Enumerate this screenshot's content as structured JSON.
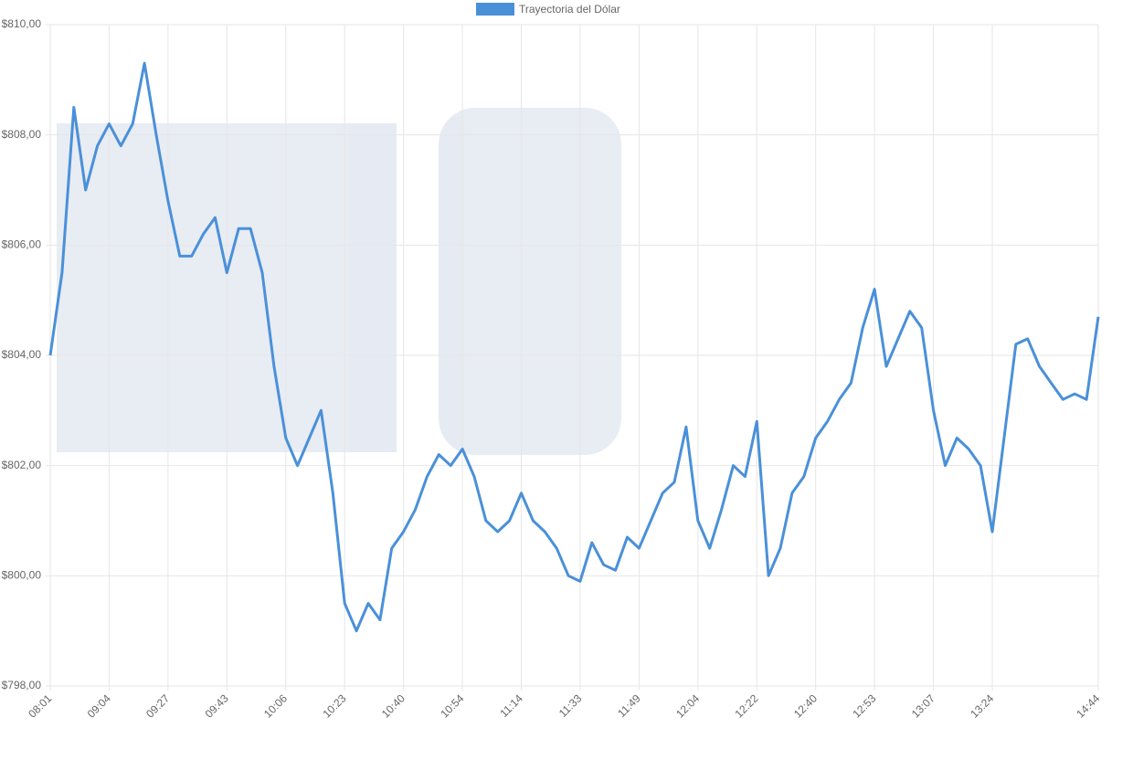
{
  "chart_data": {
    "type": "line",
    "categories": [
      "08:01",
      null,
      null,
      null,
      null,
      "09:04",
      null,
      null,
      null,
      null,
      "09:27",
      null,
      null,
      null,
      null,
      "09:43",
      null,
      null,
      null,
      null,
      "10:06",
      null,
      null,
      null,
      null,
      "10:23",
      null,
      null,
      null,
      null,
      "10:40",
      null,
      null,
      null,
      null,
      "10:54",
      null,
      null,
      null,
      null,
      "11:14",
      null,
      null,
      null,
      null,
      "11:33",
      null,
      null,
      null,
      null,
      "11:49",
      null,
      null,
      null,
      null,
      "12:04",
      null,
      null,
      null,
      null,
      "12:22",
      null,
      null,
      null,
      null,
      "12:40",
      null,
      null,
      null,
      null,
      "12:53",
      null,
      null,
      null,
      null,
      "13:07",
      null,
      null,
      null,
      null,
      "13:24",
      null,
      null,
      null,
      null,
      null,
      null,
      null,
      null,
      "14:44"
    ],
    "series": [
      {
        "name": "Trayectoria del Dólar",
        "color": "#4a90d9",
        "values": [
          804.0,
          805.5,
          808.5,
          807.0,
          807.8,
          808.2,
          807.8,
          808.2,
          809.3,
          808.0,
          806.8,
          805.8,
          805.8,
          806.2,
          806.5,
          805.5,
          806.3,
          806.3,
          805.5,
          803.8,
          802.5,
          802.0,
          802.5,
          803.0,
          801.5,
          799.5,
          799.0,
          799.5,
          799.2,
          800.5,
          800.8,
          801.2,
          801.8,
          802.2,
          802.0,
          802.3,
          801.8,
          801.0,
          800.8,
          801.0,
          801.5,
          801.0,
          800.8,
          800.5,
          800.0,
          799.9,
          800.6,
          800.2,
          800.1,
          800.7,
          800.5,
          801.0,
          801.5,
          801.7,
          802.7,
          801.0,
          800.5,
          801.2,
          802.0,
          801.8,
          802.8,
          800.0,
          800.5,
          801.5,
          801.8,
          802.5,
          802.8,
          803.2,
          803.5,
          804.5,
          805.2,
          803.8,
          804.3,
          804.8,
          804.5,
          803.0,
          802.0,
          802.5,
          802.3,
          802.0,
          800.8,
          802.5,
          804.2,
          804.3,
          803.8,
          803.5,
          803.2,
          803.3,
          803.2,
          804.7
        ]
      }
    ],
    "ylim": [
      798,
      810
    ],
    "yticks": [
      {
        "value": 798,
        "label": "$798,00"
      },
      {
        "value": 800,
        "label": "$800,00"
      },
      {
        "value": 802,
        "label": "$802,00"
      },
      {
        "value": 804,
        "label": "$804,00"
      },
      {
        "value": 806,
        "label": "$806,00"
      },
      {
        "value": 808,
        "label": "$808,00"
      },
      {
        "value": 810,
        "label": "$810,00"
      }
    ],
    "grid": true
  }
}
